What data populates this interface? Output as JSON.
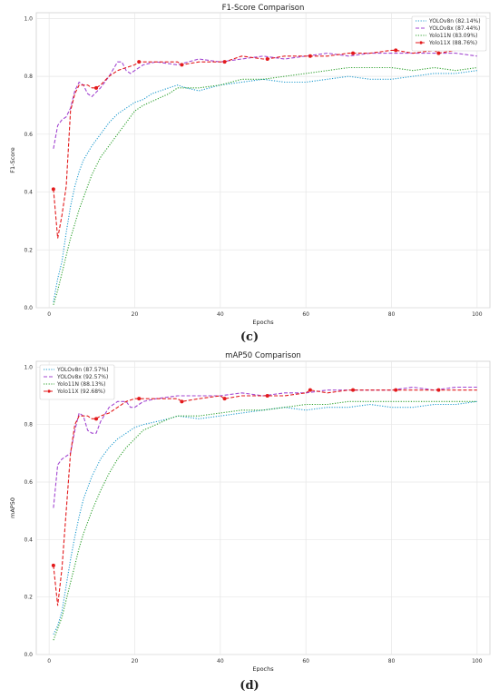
{
  "chart_data": [
    {
      "id": "c",
      "type": "line",
      "title": "F1-Score Comparison",
      "xlabel": "Epochs",
      "ylabel": "F1-Score",
      "xlim": [
        -3,
        103
      ],
      "ylim": [
        0.0,
        1.02
      ],
      "xticks": [
        "0",
        "20",
        "40",
        "60",
        "80",
        "100"
      ],
      "xtick_values": [
        0,
        20,
        40,
        60,
        80,
        100
      ],
      "yticks": [
        "0.0",
        "0.2",
        "0.4",
        "0.6",
        "0.8",
        "1.0"
      ],
      "ytick_values": [
        0.0,
        0.2,
        0.4,
        0.6,
        0.8,
        1.0
      ],
      "grid": true,
      "legend_position": "top-right",
      "caption": "(c)",
      "series": [
        {
          "name": "YOLOv8n (82.14%)",
          "color": "#1f9bcf",
          "style": "dotted",
          "x": [
            1,
            2,
            3,
            4,
            5,
            6,
            7,
            8,
            10,
            12,
            14,
            16,
            18,
            20,
            22,
            24,
            26,
            28,
            30,
            32,
            35,
            40,
            45,
            50,
            55,
            60,
            65,
            70,
            75,
            80,
            85,
            90,
            95,
            100
          ],
          "y": [
            0.02,
            0.1,
            0.16,
            0.26,
            0.35,
            0.42,
            0.47,
            0.51,
            0.56,
            0.6,
            0.64,
            0.67,
            0.69,
            0.71,
            0.72,
            0.74,
            0.75,
            0.76,
            0.77,
            0.76,
            0.75,
            0.77,
            0.78,
            0.79,
            0.78,
            0.78,
            0.79,
            0.8,
            0.79,
            0.79,
            0.8,
            0.81,
            0.81,
            0.82
          ]
        },
        {
          "name": "YOLOv8x (87.44%)",
          "color": "#a347d1",
          "style": "dashed",
          "x": [
            1,
            2,
            3,
            4,
            5,
            6,
            7,
            8,
            9,
            10,
            12,
            14,
            16,
            17,
            18,
            19,
            20,
            22,
            25,
            30,
            35,
            40,
            45,
            50,
            55,
            60,
            65,
            70,
            75,
            80,
            85,
            90,
            95,
            100
          ],
          "y": [
            0.55,
            0.63,
            0.65,
            0.66,
            0.69,
            0.75,
            0.78,
            0.77,
            0.74,
            0.73,
            0.76,
            0.8,
            0.85,
            0.85,
            0.82,
            0.81,
            0.82,
            0.84,
            0.85,
            0.84,
            0.86,
            0.85,
            0.86,
            0.87,
            0.86,
            0.87,
            0.88,
            0.87,
            0.88,
            0.88,
            0.88,
            0.88,
            0.88,
            0.87
          ]
        },
        {
          "name": "Yolo11N (83.09%)",
          "color": "#2ca02c",
          "style": "dotted",
          "x": [
            1,
            2,
            3,
            4,
            5,
            6,
            7,
            8,
            10,
            12,
            14,
            16,
            18,
            20,
            22,
            25,
            28,
            30,
            35,
            40,
            45,
            50,
            55,
            60,
            65,
            70,
            75,
            80,
            85,
            90,
            95,
            100
          ],
          "y": [
            0.01,
            0.06,
            0.12,
            0.18,
            0.24,
            0.29,
            0.34,
            0.38,
            0.46,
            0.52,
            0.56,
            0.6,
            0.64,
            0.68,
            0.7,
            0.72,
            0.74,
            0.76,
            0.76,
            0.77,
            0.79,
            0.79,
            0.8,
            0.81,
            0.82,
            0.83,
            0.83,
            0.83,
            0.82,
            0.83,
            0.82,
            0.83
          ]
        },
        {
          "name": "Yolo11X (88.76%)",
          "color": "#e31a1c",
          "style": "dashed-marker",
          "x": [
            1,
            2,
            3,
            4,
            5,
            6,
            7,
            8,
            9,
            10,
            11,
            12,
            14,
            16,
            18,
            20,
            21,
            25,
            30,
            31,
            35,
            40,
            41,
            45,
            50,
            51,
            55,
            60,
            61,
            65,
            70,
            71,
            75,
            80,
            81,
            85,
            90,
            91,
            95,
            100
          ],
          "y": [
            0.41,
            0.24,
            0.32,
            0.42,
            0.68,
            0.74,
            0.77,
            0.77,
            0.77,
            0.76,
            0.76,
            0.77,
            0.8,
            0.82,
            0.83,
            0.84,
            0.85,
            0.85,
            0.85,
            0.84,
            0.85,
            0.85,
            0.85,
            0.87,
            0.86,
            0.86,
            0.87,
            0.87,
            0.87,
            0.87,
            0.88,
            0.88,
            0.88,
            0.89,
            0.89,
            0.88,
            0.89,
            0.88,
            0.89,
            0.89
          ],
          "marker_x": [
            1,
            11,
            21,
            31,
            41,
            51,
            61,
            71,
            81,
            91
          ]
        }
      ]
    },
    {
      "id": "d",
      "type": "line",
      "title": "mAP50 Comparison",
      "xlabel": "Epochs",
      "ylabel": "mAP50",
      "xlim": [
        -3,
        103
      ],
      "ylim": [
        0.0,
        1.02
      ],
      "xticks": [
        "0",
        "20",
        "40",
        "60",
        "80",
        "100"
      ],
      "xtick_values": [
        0,
        20,
        40,
        60,
        80,
        100
      ],
      "yticks": [
        "0.0",
        "0.2",
        "0.4",
        "0.6",
        "0.8",
        "1.0"
      ],
      "ytick_values": [
        0.0,
        0.2,
        0.4,
        0.6,
        0.8,
        1.0
      ],
      "grid": true,
      "legend_position": "top-left",
      "caption": "(d)",
      "series": [
        {
          "name": "YOLOv8n (87.57%)",
          "color": "#1f9bcf",
          "style": "dotted",
          "x": [
            1,
            2,
            3,
            4,
            5,
            6,
            7,
            8,
            10,
            12,
            14,
            16,
            18,
            20,
            22,
            25,
            28,
            30,
            35,
            40,
            45,
            50,
            55,
            60,
            65,
            70,
            75,
            80,
            85,
            90,
            95,
            100
          ],
          "y": [
            0.07,
            0.1,
            0.15,
            0.24,
            0.33,
            0.41,
            0.48,
            0.54,
            0.62,
            0.68,
            0.72,
            0.75,
            0.77,
            0.79,
            0.8,
            0.81,
            0.82,
            0.83,
            0.82,
            0.83,
            0.84,
            0.85,
            0.86,
            0.85,
            0.86,
            0.86,
            0.87,
            0.86,
            0.86,
            0.87,
            0.87,
            0.88
          ]
        },
        {
          "name": "YOLOv8x (92.57%)",
          "color": "#a347d1",
          "style": "dashed",
          "x": [
            1,
            2,
            3,
            4,
            5,
            6,
            7,
            8,
            9,
            10,
            11,
            12,
            14,
            16,
            18,
            19,
            20,
            22,
            25,
            30,
            35,
            40,
            45,
            50,
            55,
            60,
            65,
            70,
            75,
            80,
            85,
            90,
            95,
            100
          ],
          "y": [
            0.51,
            0.66,
            0.68,
            0.69,
            0.7,
            0.78,
            0.84,
            0.83,
            0.78,
            0.77,
            0.77,
            0.81,
            0.86,
            0.88,
            0.88,
            0.86,
            0.86,
            0.88,
            0.89,
            0.9,
            0.9,
            0.9,
            0.91,
            0.9,
            0.91,
            0.91,
            0.92,
            0.92,
            0.92,
            0.92,
            0.93,
            0.92,
            0.93,
            0.93
          ]
        },
        {
          "name": "Yolo11N (88.13%)",
          "color": "#2ca02c",
          "style": "dotted",
          "x": [
            1,
            2,
            3,
            4,
            5,
            6,
            7,
            8,
            10,
            12,
            14,
            16,
            18,
            20,
            22,
            25,
            28,
            30,
            35,
            40,
            45,
            50,
            55,
            60,
            65,
            70,
            75,
            80,
            85,
            90,
            95,
            100
          ],
          "y": [
            0.05,
            0.09,
            0.13,
            0.19,
            0.25,
            0.31,
            0.37,
            0.42,
            0.5,
            0.57,
            0.63,
            0.68,
            0.72,
            0.75,
            0.78,
            0.8,
            0.82,
            0.83,
            0.83,
            0.84,
            0.85,
            0.85,
            0.86,
            0.87,
            0.87,
            0.88,
            0.88,
            0.88,
            0.88,
            0.88,
            0.88,
            0.88
          ]
        },
        {
          "name": "Yolo11X (92.68%)",
          "color": "#e31a1c",
          "style": "dashed-marker",
          "x": [
            1,
            2,
            3,
            4,
            5,
            6,
            7,
            8,
            9,
            10,
            11,
            12,
            14,
            16,
            18,
            20,
            21,
            25,
            30,
            31,
            35,
            40,
            41,
            45,
            50,
            51,
            55,
            60,
            61,
            65,
            70,
            71,
            75,
            80,
            81,
            85,
            90,
            91,
            95,
            100
          ],
          "y": [
            0.31,
            0.17,
            0.3,
            0.5,
            0.7,
            0.8,
            0.83,
            0.83,
            0.83,
            0.82,
            0.82,
            0.83,
            0.84,
            0.86,
            0.88,
            0.89,
            0.89,
            0.89,
            0.89,
            0.88,
            0.89,
            0.9,
            0.89,
            0.9,
            0.9,
            0.9,
            0.9,
            0.91,
            0.92,
            0.91,
            0.92,
            0.92,
            0.92,
            0.92,
            0.92,
            0.92,
            0.92,
            0.92,
            0.92,
            0.92
          ],
          "marker_x": [
            1,
            11,
            21,
            31,
            41,
            51,
            61,
            71,
            81,
            91
          ]
        }
      ]
    }
  ]
}
